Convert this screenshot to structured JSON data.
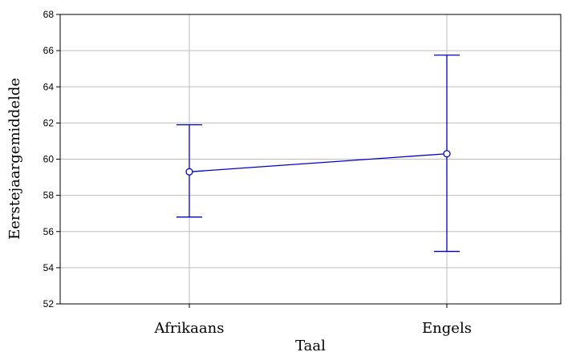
{
  "chart_data": {
    "type": "line",
    "title": "",
    "xlabel": "Taal",
    "ylabel": "Eerstejaargemiddelde",
    "categories": [
      "Afrikaans",
      "Engels"
    ],
    "series": [
      {
        "values": [
          59.3,
          60.3
        ],
        "error_low": [
          56.8,
          54.9
        ],
        "error_high": [
          61.9,
          65.75
        ]
      }
    ],
    "ylim": [
      52,
      68
    ],
    "yticks": [
      52,
      54,
      56,
      58,
      60,
      62,
      64,
      66,
      68
    ],
    "grid": true,
    "color": "#0000cc"
  }
}
